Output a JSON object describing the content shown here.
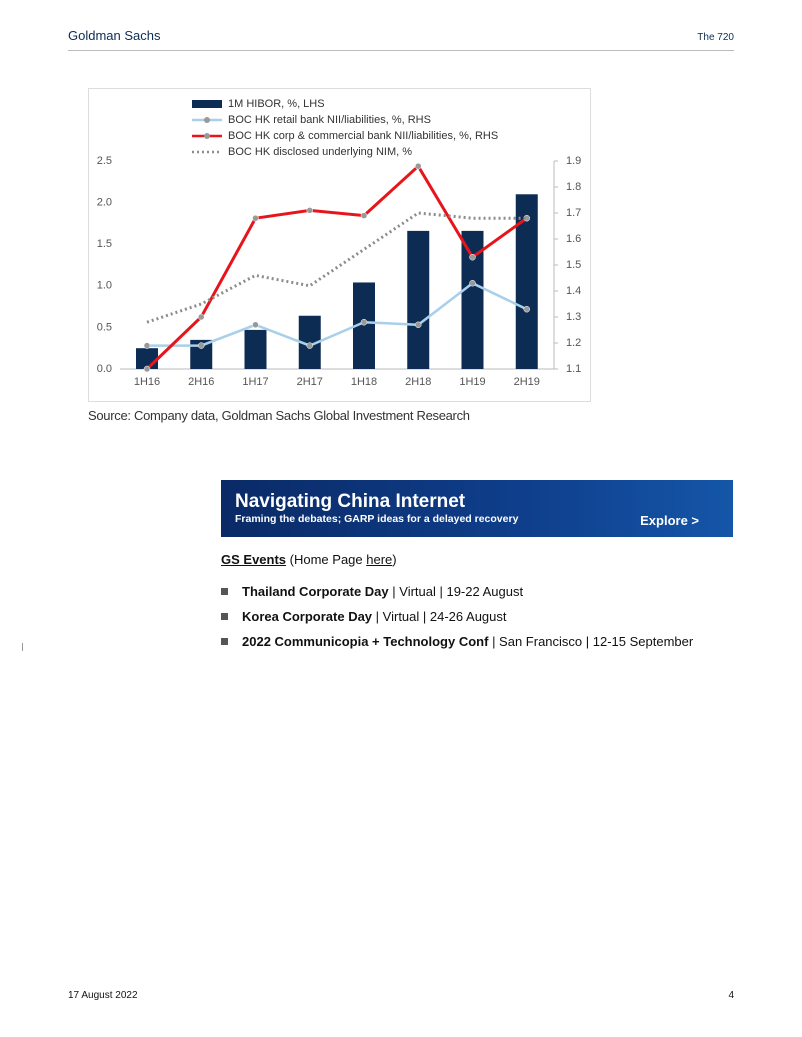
{
  "header": {
    "brand": "Goldman Sachs",
    "publication": "The 720"
  },
  "chart_data": {
    "type": "bar",
    "categories": [
      "1H16",
      "2H16",
      "1H17",
      "2H17",
      "1H18",
      "2H18",
      "1H19",
      "2H19"
    ],
    "series": [
      {
        "name": "1M HIBOR, %, LHS",
        "type": "bar",
        "color": "#0d2c54",
        "values": [
          0.25,
          0.35,
          0.47,
          0.64,
          1.04,
          1.66,
          1.66,
          2.1
        ]
      },
      {
        "name": "BOC HK retail bank NII/liabilities, %, RHS",
        "type": "line",
        "axis": "y2",
        "color": "#a9d0ea",
        "marker": true,
        "values": [
          1.19,
          1.19,
          1.27,
          1.19,
          1.28,
          1.27,
          1.43,
          1.33
        ]
      },
      {
        "name": "BOC HK corp & commercial bank NII/liabilities, %, RHS",
        "type": "line",
        "axis": "y2",
        "color": "#e8141b",
        "marker": true,
        "values": [
          1.1,
          1.3,
          1.68,
          1.71,
          1.69,
          1.88,
          1.53,
          1.68
        ]
      },
      {
        "name": "BOC HK disclosed underlying NIM, %",
        "type": "line",
        "axis": "y2",
        "color": "#8c8c8c",
        "dotted": true,
        "values": [
          1.28,
          1.35,
          1.46,
          1.42,
          1.56,
          1.7,
          1.68,
          1.68
        ]
      }
    ],
    "ylim": [
      0,
      2.5
    ],
    "yticks": [
      {
        "value": 0,
        "label": "0.0"
      },
      0.5,
      {
        "value": 1,
        "label": "1.0"
      },
      1.5,
      {
        "value": 2,
        "label": "2.0"
      },
      2.5
    ],
    "y2lim": [
      1.1,
      1.9
    ],
    "y2ticks": [
      1.1,
      1.2,
      1.3,
      1.4,
      1.5,
      1.6,
      1.7,
      1.8,
      1.9
    ],
    "legend": "top"
  },
  "source": "Source: Company data, Goldman Sachs Global Investment Research",
  "banner": {
    "title": "Navigating China Internet",
    "subtitle": "Framing the debates; GARP ideas for a delayed recovery",
    "cta": "Explore >"
  },
  "events": {
    "heading": "GS Events",
    "home_prefix": "(Home Page ",
    "home_link": "here",
    "home_suffix": ")",
    "items": [
      {
        "name": "Thailand Corporate Day",
        "details": "| Virtual | 19-22 August"
      },
      {
        "name": "Korea Corporate Day",
        "details": "| Virtual | 24-26 August"
      },
      {
        "name": "2022 Communicopia + Technology Conf",
        "details": "| San Francisco | 12-15 September"
      }
    ]
  },
  "footer": {
    "date": "17 August 2022",
    "page": "4"
  }
}
